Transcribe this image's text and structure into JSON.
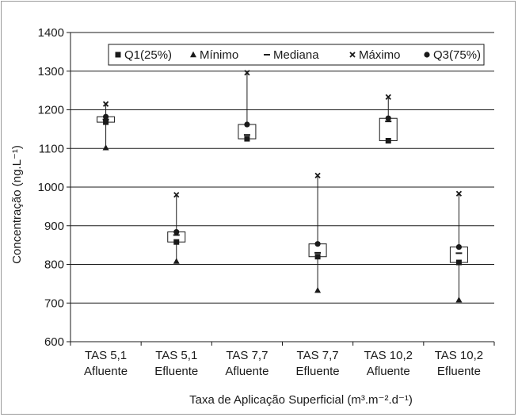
{
  "chart_data": {
    "type": "box",
    "title": "",
    "xlabel": "Taxa de Aplicação Superficial (m³.m⁻².d⁻¹)",
    "ylabel": "Concentração (ng.L⁻¹)",
    "ylim": [
      600,
      1400
    ],
    "yticks": [
      600,
      700,
      800,
      900,
      1000,
      1100,
      1200,
      1300,
      1400
    ],
    "grid": true,
    "legend_position": "top-center",
    "categories": [
      {
        "line1": "TAS 5,1",
        "line2": "Afluente"
      },
      {
        "line1": "TAS 5,1",
        "line2": "Efluente"
      },
      {
        "line1": "TAS 7,7",
        "line2": "Afluente"
      },
      {
        "line1": "TAS 7,7",
        "line2": "Efluente"
      },
      {
        "line1": "TAS 10,2",
        "line2": "Afluente"
      },
      {
        "line1": "TAS 10,2",
        "line2": "Efluente"
      }
    ],
    "legend": [
      {
        "key": "q1",
        "label": "Q1(25%)",
        "marker": "square"
      },
      {
        "key": "min",
        "label": "Mínimo",
        "marker": "triangle"
      },
      {
        "key": "median",
        "label": "Mediana",
        "marker": "dash"
      },
      {
        "key": "max",
        "label": "Máximo",
        "marker": "x"
      },
      {
        "key": "q3",
        "label": "Q3(75%)",
        "marker": "circle"
      }
    ],
    "series": [
      {
        "min": 1102,
        "q1": 1168,
        "median": 1175,
        "q3": 1182,
        "max": 1215
      },
      {
        "min": 808,
        "q1": 858,
        "median": 876,
        "q3": 884,
        "max": 980
      },
      {
        "min": null,
        "q1": 1125,
        "median": 1135,
        "q3": 1162,
        "max": 1296
      },
      {
        "min": 733,
        "q1": 820,
        "median": 830,
        "q3": 853,
        "max": 1030
      },
      {
        "min": null,
        "q1": 1120,
        "median": 1170,
        "q3": 1178,
        "max": 1233
      },
      {
        "min": 708,
        "q1": 805,
        "median": 829,
        "q3": 845,
        "max": 983
      }
    ],
    "colors": {
      "axis": "#1a1a1a",
      "grid": "#1a1a1a",
      "frame": "#9a9a9a",
      "box_fill": "#ffffff"
    }
  }
}
